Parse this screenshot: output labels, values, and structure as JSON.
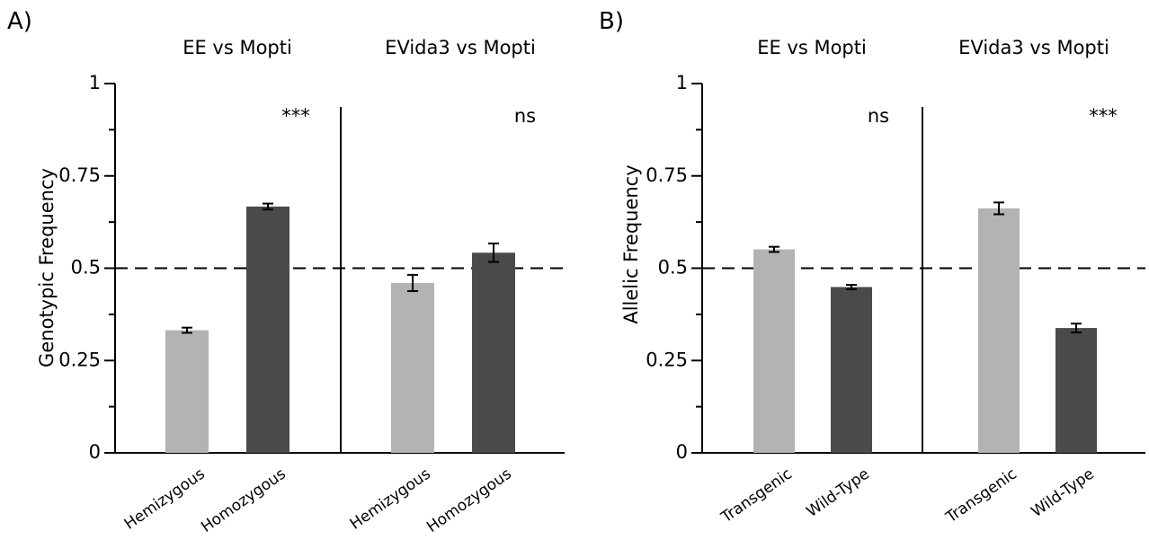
{
  "colors": {
    "light_bar": "#b3b3b3",
    "dark_bar": "#4a4a4a",
    "axis": "#000000",
    "reference_line": "#000000"
  },
  "chart_data": [
    {
      "type": "bar",
      "panel_label": "A)",
      "ylabel": "Genotypic Frequency",
      "ylim": [
        0,
        1
      ],
      "yticks": [
        {
          "value": 0,
          "label": "0"
        },
        {
          "value": 0.25,
          "label": "0.25"
        },
        {
          "value": 0.5,
          "label": "0.5"
        },
        {
          "value": 0.75,
          "label": "0.75"
        },
        {
          "value": 1,
          "label": "1"
        }
      ],
      "reference_line": 0.5,
      "groups": [
        {
          "title": "EE vs Mopti",
          "significance": "***",
          "categories": [
            "Hemizygous",
            "Homozygous"
          ],
          "values": [
            0.332,
            0.667
          ],
          "errors": [
            0.007,
            0.008
          ]
        },
        {
          "title": "EVida3 vs Mopti",
          "significance": "ns",
          "categories": [
            "Hemizygous",
            "Homozygous"
          ],
          "values": [
            0.46,
            0.542
          ],
          "errors": [
            0.022,
            0.025
          ]
        }
      ]
    },
    {
      "type": "bar",
      "panel_label": "B)",
      "ylabel": "Allelic Frequency",
      "ylim": [
        0,
        1
      ],
      "yticks": [
        {
          "value": 0,
          "label": "0"
        },
        {
          "value": 0.25,
          "label": "0.25"
        },
        {
          "value": 0.5,
          "label": "0.5"
        },
        {
          "value": 0.75,
          "label": "0.75"
        },
        {
          "value": 1,
          "label": "1"
        }
      ],
      "reference_line": 0.5,
      "groups": [
        {
          "title": "EE vs Mopti",
          "significance": "ns",
          "categories": [
            "Transgenic",
            "Wild-Type"
          ],
          "values": [
            0.551,
            0.449
          ],
          "errors": [
            0.007,
            0.006
          ]
        },
        {
          "title": "EVida3 vs Mopti",
          "significance": "***",
          "categories": [
            "Transgenic",
            "Wild-Type"
          ],
          "values": [
            0.662,
            0.338
          ],
          "errors": [
            0.016,
            0.012
          ]
        }
      ]
    }
  ]
}
